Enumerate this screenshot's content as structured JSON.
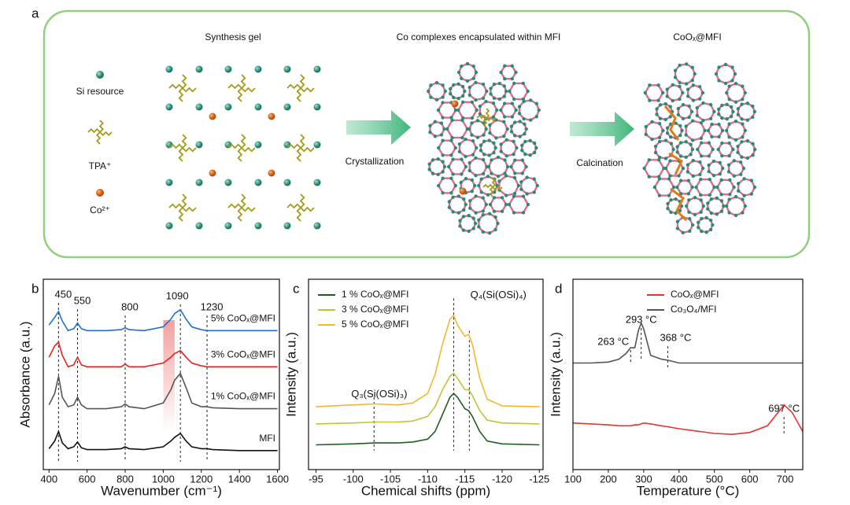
{
  "panel_a": {
    "label": "a",
    "titles": [
      "Synthesis gel",
      "Co complexes encapsulated within MFI",
      "CoOₓ@MFI"
    ],
    "legend": [
      "Si resource",
      "TPA⁺",
      "Co²⁺"
    ],
    "steps": [
      "Crystallization",
      "Calcination"
    ]
  },
  "chart_data": [
    {
      "type": "line",
      "panel_label": "b",
      "x_label": "Wavenumber (cm⁻¹)",
      "y_label": "Absorbance (a.u.)",
      "xlim": [
        370,
        1610
      ],
      "xticks": [
        400,
        600,
        800,
        1000,
        1200,
        1400,
        1600
      ],
      "ylim": [
        0,
        10
      ],
      "x": [
        400,
        430,
        450,
        470,
        500,
        530,
        550,
        570,
        600,
        700,
        780,
        800,
        820,
        900,
        1000,
        1040,
        1060,
        1090,
        1120,
        1150,
        1200,
        1230,
        1260,
        1400,
        1600
      ],
      "series": [
        {
          "name": "5% CoOₓ@MFI",
          "color": "#1f6fd6",
          "values": [
            7.6,
            8.0,
            8.3,
            7.8,
            7.3,
            7.4,
            7.7,
            7.4,
            7.3,
            7.3,
            7.35,
            7.45,
            7.35,
            7.3,
            7.5,
            7.9,
            8.2,
            8.4,
            7.9,
            7.5,
            7.35,
            7.3,
            7.3,
            7.3,
            7.3
          ]
        },
        {
          "name": "3% CoOₓ@MFI",
          "color": "#e8201e",
          "values": [
            5.9,
            6.5,
            6.7,
            6.0,
            5.4,
            5.5,
            5.9,
            5.5,
            5.4,
            5.4,
            5.4,
            5.55,
            5.4,
            5.4,
            5.6,
            5.9,
            6.1,
            6.25,
            5.9,
            5.6,
            5.45,
            5.4,
            5.4,
            5.4,
            5.4
          ]
        },
        {
          "name": "1% CoOₓ@MFI",
          "color": "#555555",
          "values": [
            3.4,
            4.0,
            4.9,
            3.8,
            3.3,
            3.4,
            3.8,
            3.4,
            3.2,
            3.2,
            3.3,
            3.45,
            3.3,
            3.2,
            3.5,
            4.2,
            4.7,
            5.05,
            4.3,
            3.5,
            3.3,
            3.3,
            3.25,
            3.2,
            3.2
          ]
        },
        {
          "name": "MFI",
          "color": "#111111",
          "values": [
            1.1,
            1.5,
            2.0,
            1.4,
            1.1,
            1.2,
            1.45,
            1.15,
            1.05,
            1.05,
            1.1,
            1.2,
            1.1,
            1.05,
            1.2,
            1.5,
            1.7,
            1.9,
            1.5,
            1.2,
            1.1,
            1.1,
            1.05,
            1.0,
            1.0
          ]
        }
      ],
      "peaks": [
        450,
        550,
        800,
        1090,
        1230
      ],
      "highlight": [
        1000,
        1060
      ],
      "legend": "beside-curves"
    },
    {
      "type": "line",
      "panel_label": "c",
      "x_label": "Chemical shifts (ppm)",
      "y_label": "Intensity (a.u.)",
      "xlim": [
        -94,
        -125.5
      ],
      "xticks": [
        -95,
        -100,
        -105,
        -110,
        -115,
        -120,
        -125
      ],
      "ylim": [
        0,
        10
      ],
      "x": [
        -95,
        -100,
        -103,
        -106,
        -108,
        -110,
        -111,
        -112,
        -113,
        -113.5,
        -114,
        -115,
        -115.5,
        -116,
        -117,
        -118,
        -120,
        -125
      ],
      "series": [
        {
          "name": "1 % CoOₓ@MFI",
          "color": "#1b5e20",
          "values": [
            1.3,
            1.35,
            1.4,
            1.4,
            1.45,
            1.6,
            2.0,
            2.9,
            3.8,
            4.0,
            3.8,
            3.2,
            3.1,
            2.8,
            2.0,
            1.5,
            1.35,
            1.3
          ]
        },
        {
          "name": "3 % CoOₓ@MFI",
          "color": "#c3c236",
          "values": [
            2.4,
            2.45,
            2.5,
            2.5,
            2.55,
            2.8,
            3.3,
            4.2,
            4.9,
            5.06,
            4.8,
            4.2,
            4.2,
            3.9,
            3.1,
            2.6,
            2.45,
            2.4
          ]
        },
        {
          "name": "5 % CoOₓ@MFI",
          "color": "#f2b830",
          "values": [
            3.3,
            3.4,
            3.45,
            3.4,
            3.5,
            4.0,
            5.0,
            6.6,
            7.9,
            8.1,
            7.6,
            7.0,
            7.1,
            6.6,
            4.8,
            3.7,
            3.35,
            3.3
          ]
        }
      ],
      "peaks": [
        -102.8,
        -113.5,
        -115.6
      ],
      "annotations": [
        "Q₃(Si(OSi)₃)",
        "Q₄(Si(OSi)₄)"
      ],
      "legend": "upper left"
    },
    {
      "type": "line",
      "panel_label": "d",
      "x_label": "Temperature (°C)",
      "y_label": "Intensity (a.u.)",
      "xlim": [
        100,
        750
      ],
      "xticks": [
        100,
        200,
        300,
        400,
        500,
        600,
        700
      ],
      "ylim": [
        0,
        10
      ],
      "x": [
        100,
        150,
        200,
        230,
        250,
        263,
        275,
        285,
        293,
        300,
        320,
        350,
        368,
        400,
        500,
        550,
        600,
        650,
        680,
        697,
        720,
        750
      ],
      "series": [
        {
          "name": "CoOₓ@MFI",
          "color": "#e8332e",
          "values": [
            2.45,
            2.4,
            2.35,
            2.3,
            2.3,
            2.3,
            2.35,
            2.35,
            2.4,
            2.45,
            2.4,
            2.3,
            2.25,
            2.15,
            1.9,
            1.85,
            1.95,
            2.3,
            3.0,
            3.4,
            3.0,
            2.0
          ]
        },
        {
          "name": "Co₃O₄/MFI",
          "color": "#555555",
          "values": [
            5.6,
            5.6,
            5.65,
            5.8,
            6.1,
            6.4,
            6.4,
            7.3,
            7.7,
            7.4,
            6.0,
            5.8,
            5.75,
            5.6,
            5.6,
            5.6,
            5.6,
            5.6,
            5.6,
            5.6,
            5.6,
            5.6
          ]
        }
      ],
      "peaks": [
        {
          "value": 263,
          "label": "263 °C"
        },
        {
          "value": 293,
          "label": "293 °C"
        },
        {
          "value": 368,
          "label": "368 °C"
        },
        {
          "value": 697,
          "label": "697 °C"
        }
      ],
      "legend": "upper right"
    }
  ]
}
